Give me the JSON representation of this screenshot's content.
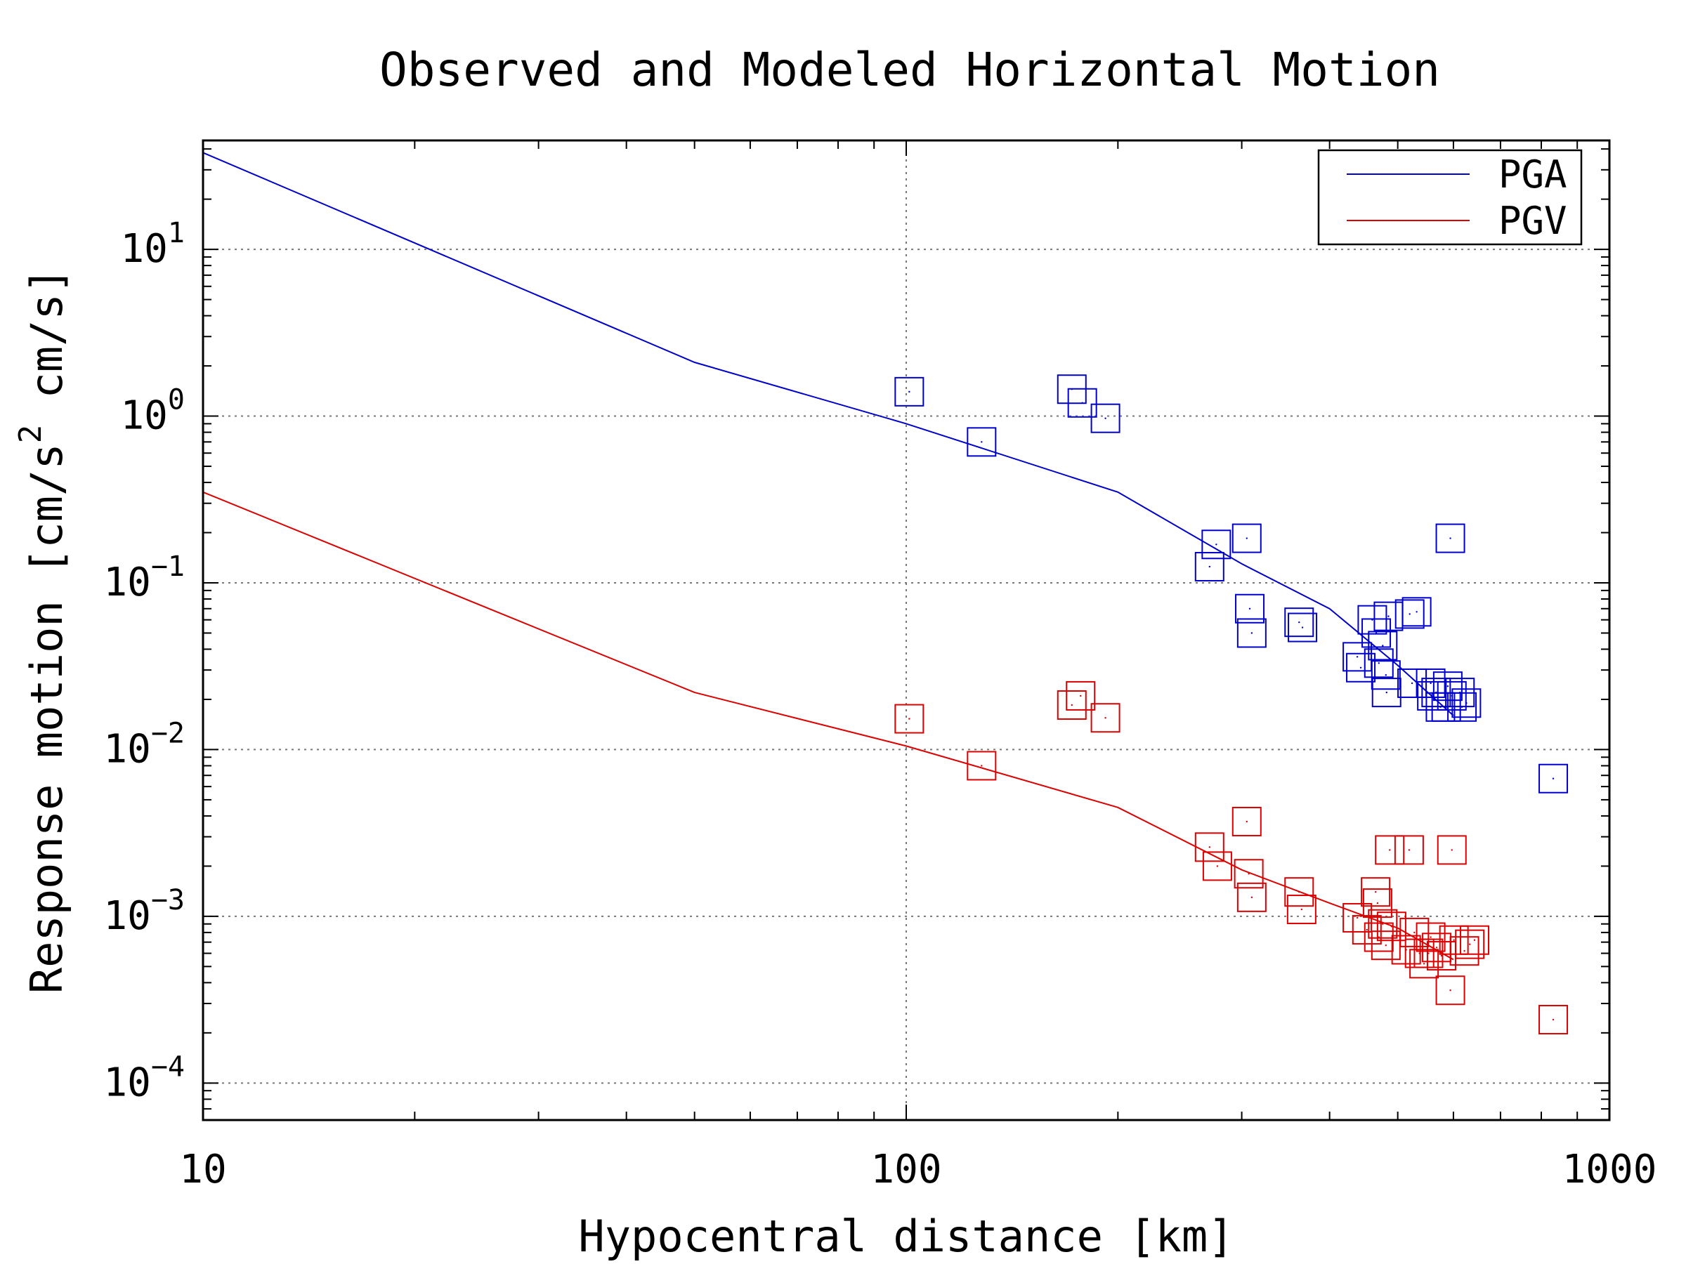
{
  "chart_data": {
    "type": "scatter",
    "title": "Observed and Modeled Horizontal Motion",
    "xlabel": "Hypocentral distance [km]",
    "ylabel": "Response motion [cm/s",
    "ylabel_sup": "2",
    "ylabel_tail": " cm/s]",
    "x_scale": "log",
    "y_scale": "log",
    "xlim": [
      10,
      1000
    ],
    "ylim": [
      6e-05,
      45
    ],
    "x_ticks": [
      {
        "value": 10,
        "label": "10"
      },
      {
        "value": 100,
        "label": "100"
      },
      {
        "value": 1000,
        "label": "1000"
      }
    ],
    "y_ticks": [
      {
        "value": 10,
        "base": "10",
        "exp": "1"
      },
      {
        "value": 1,
        "base": "10",
        "exp": "0"
      },
      {
        "value": 0.1,
        "base": "10",
        "exp": "−1"
      },
      {
        "value": 0.01,
        "base": "10",
        "exp": "−2"
      },
      {
        "value": 0.001,
        "base": "10",
        "exp": "−3"
      },
      {
        "value": 0.0001,
        "base": "10",
        "exp": "−4"
      }
    ],
    "grid": true,
    "legend_position": "top-right",
    "legend": [
      {
        "label": "PGA",
        "color": "#0000cc"
      },
      {
        "label": "PGV",
        "color": "#dd0000"
      }
    ],
    "lines": [
      {
        "name": "PGA",
        "color": "#0000cc",
        "x": [
          10,
          50,
          100,
          200,
          300,
          400,
          500,
          600
        ],
        "y": [
          38,
          2.1,
          0.9,
          0.35,
          0.13,
          0.07,
          0.032,
          0.016
        ]
      },
      {
        "name": "PGV",
        "color": "#dd0000",
        "x": [
          10,
          50,
          100,
          200,
          300,
          400,
          500,
          600
        ],
        "y": [
          0.35,
          0.022,
          0.0105,
          0.0045,
          0.0019,
          0.0012,
          0.00085,
          0.00055
        ]
      }
    ],
    "series": [
      {
        "name": "PGA observed",
        "color": "#0000cc",
        "x": [
          101,
          128,
          172,
          178,
          192,
          270,
          276,
          305,
          308,
          310,
          362,
          366,
          438,
          443,
          460,
          466,
          470,
          476,
          481,
          482,
          485,
          520,
          524,
          532,
          557,
          559,
          567,
          575,
          586,
          589,
          594,
          597,
          613,
          617,
          626,
          832
        ],
        "y": [
          1.4,
          0.7,
          1.45,
          1.2,
          0.97,
          0.125,
          0.17,
          0.185,
          0.07,
          0.05,
          0.058,
          0.054,
          0.036,
          0.031,
          0.06,
          0.05,
          0.033,
          0.042,
          0.028,
          0.022,
          0.063,
          0.065,
          0.025,
          0.067,
          0.025,
          0.021,
          0.022,
          0.018,
          0.018,
          0.024,
          0.185,
          0.021,
          0.022,
          0.018,
          0.019,
          0.0067
        ]
      },
      {
        "name": "PGV observed",
        "color": "#dd0000",
        "x": [
          101,
          128,
          172,
          177,
          192,
          270,
          277,
          305,
          307,
          310,
          362,
          365,
          438,
          452,
          465,
          468,
          470,
          476,
          481,
          487,
          490,
          514,
          519,
          528,
          537,
          545,
          553,
          557,
          568,
          577,
          594,
          597,
          601,
          622,
          633,
          643,
          832
        ],
        "y": [
          0.0153,
          0.008,
          0.0185,
          0.021,
          0.0155,
          0.0026,
          0.002,
          0.0037,
          0.0018,
          0.0013,
          0.0014,
          0.0011,
          0.00098,
          0.00083,
          0.0014,
          0.0012,
          0.00075,
          0.0009,
          0.00067,
          0.0025,
          0.00087,
          0.00063,
          0.0025,
          0.0008,
          0.0006,
          0.00052,
          0.0006,
          0.00075,
          0.00065,
          0.00058,
          0.00036,
          0.0025,
          0.00072,
          0.00062,
          0.00068,
          0.00072,
          0.00024
        ]
      }
    ]
  }
}
